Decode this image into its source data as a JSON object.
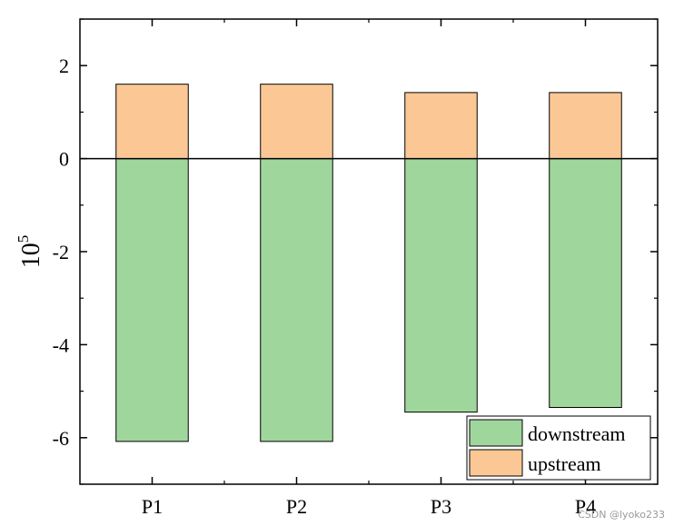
{
  "chart_data": {
    "type": "bar",
    "stacked": true,
    "categories": [
      "P1",
      "P2",
      "P3",
      "P4"
    ],
    "series": [
      {
        "name": "downstream",
        "color": "#9fd69c",
        "values": [
          -6.08,
          -6.08,
          -5.45,
          -5.35
        ]
      },
      {
        "name": "upstream",
        "color": "#fbc895",
        "values": [
          1.6,
          1.6,
          1.42,
          1.42
        ]
      }
    ],
    "ylabel_base": "10",
    "ylabel_exp": "5",
    "ylim": [
      -7,
      3
    ],
    "yticks": [
      2,
      0,
      -2,
      -4,
      -6
    ],
    "ytick_labels": [
      "2",
      "0",
      "-2",
      "-4",
      "-6"
    ],
    "zero_line": true,
    "grid": false,
    "legend_position": "bottom-right"
  },
  "watermark": "CSDN @lyoko233"
}
